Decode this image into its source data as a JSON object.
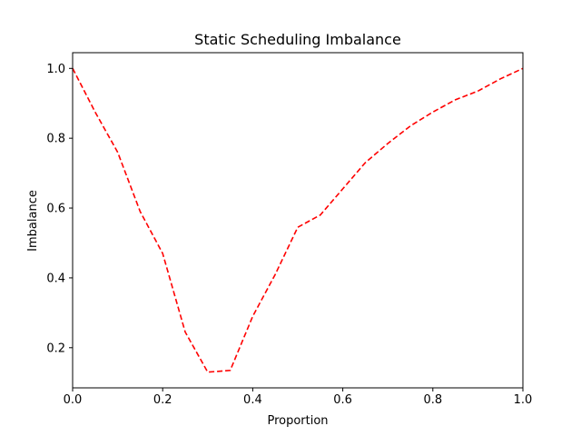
{
  "chart_data": {
    "type": "line",
    "title": "Static Scheduling Imbalance",
    "xlabel": "Proportion",
    "ylabel": "Imbalance",
    "xlim": [
      0.0,
      1.0
    ],
    "ylim": [
      0.085,
      1.045
    ],
    "x_ticks": [
      "0.0",
      "0.2",
      "0.4",
      "0.6",
      "0.8",
      "1.0"
    ],
    "y_ticks": [
      "0.2",
      "0.4",
      "0.6",
      "0.8",
      "1.0"
    ],
    "grid": false,
    "series": [
      {
        "line_style": "dashed",
        "color": "#ff0000",
        "x": [
          0.0,
          0.05,
          0.1,
          0.15,
          0.2,
          0.25,
          0.3,
          0.35,
          0.4,
          0.45,
          0.5,
          0.55,
          0.6,
          0.65,
          0.7,
          0.75,
          0.8,
          0.85,
          0.9,
          0.95,
          1.0
        ],
        "y": [
          1.0,
          0.875,
          0.76,
          0.59,
          0.47,
          0.245,
          0.13,
          0.135,
          0.29,
          0.41,
          0.545,
          0.58,
          0.655,
          0.73,
          0.785,
          0.835,
          0.875,
          0.91,
          0.935,
          0.97,
          1.0
        ]
      }
    ]
  }
}
